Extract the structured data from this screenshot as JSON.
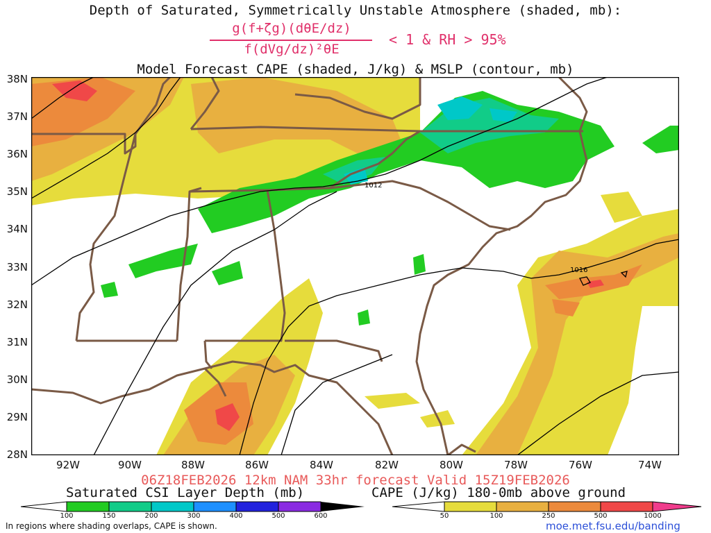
{
  "header": {
    "title_line1": "Depth of Saturated, Symmetrically Unstable Atmosphere (shaded, mb):",
    "fraction_numerator": "g(f+ζg)(dθE/dz)",
    "fraction_denominator": "f(dVg/dz)²θE",
    "condition": "< 1 & RH > 95%",
    "title_line3": "Model Forecast CAPE (shaded, J/kg) & MSLP (contour, mb)"
  },
  "map": {
    "lat_labels": [
      "38N",
      "37N",
      "36N",
      "35N",
      "34N",
      "33N",
      "32N",
      "31N",
      "30N",
      "29N",
      "28N"
    ],
    "lon_labels": [
      "92W",
      "90W",
      "88W",
      "86W",
      "84W",
      "82W",
      "80W",
      "78W",
      "76W",
      "74W"
    ],
    "isobar_labels": [
      "1012",
      "1016"
    ],
    "colors": {
      "state_borders": "#7a5a46",
      "isobars": "#000000",
      "frame": "#000000"
    }
  },
  "footer": {
    "run_info": "06Z18FEB2026 12km NAM 33hr forecast Valid 15Z19FEB2026",
    "csi_legend_title": "Saturated CSI Layer Depth (mb)",
    "cape_legend_title": "CAPE (J/kg) 180-0mb above ground",
    "note": "In regions where shading overlaps, CAPE is shown.",
    "url": "moe.met.fsu.edu/banding"
  },
  "csi_scale": {
    "ticks": [
      "100",
      "150",
      "200",
      "300",
      "400",
      "500",
      "600"
    ],
    "colors": [
      "#22cc22",
      "#11cc88",
      "#00c8c8",
      "#1e90ff",
      "#2222dd",
      "#8a2be2"
    ]
  },
  "cape_scale": {
    "ticks": [
      "50",
      "100",
      "250",
      "500",
      "1000"
    ],
    "colors": [
      "#e6dc3c",
      "#e8b040",
      "#ec8a3c",
      "#f04848",
      "#f03c8c"
    ]
  }
}
